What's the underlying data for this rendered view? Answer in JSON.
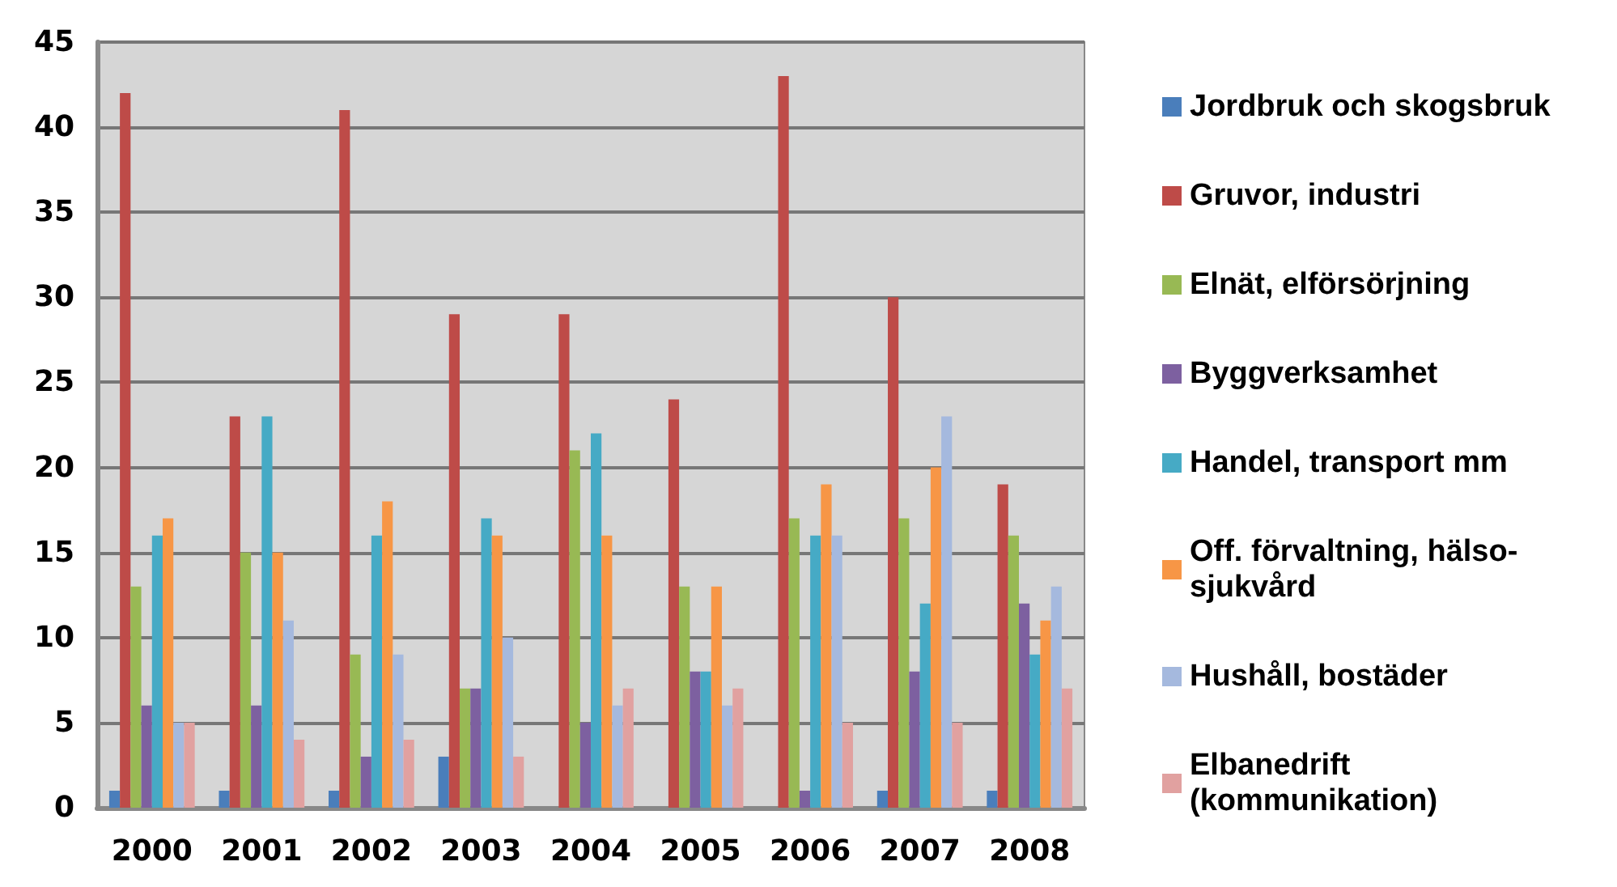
{
  "chart_data": {
    "type": "bar",
    "categories": [
      "2000",
      "2001",
      "2002",
      "2003",
      "2004",
      "2005",
      "2006",
      "2007",
      "2008"
    ],
    "ylim": [
      0,
      45
    ],
    "yticks": [
      0,
      5,
      10,
      15,
      20,
      25,
      30,
      35,
      40,
      45
    ],
    "grid": "y",
    "legend": "right",
    "series": [
      {
        "name": "Jordbruk och skogsbruk",
        "color": "#4a7ebb",
        "values": [
          1,
          1,
          1,
          3,
          0,
          0,
          0,
          1,
          1
        ]
      },
      {
        "name": "Gruvor, industri",
        "color": "#be4b48",
        "values": [
          42,
          23,
          41,
          29,
          29,
          24,
          43,
          30,
          19
        ]
      },
      {
        "name": "Elnät, elförsörjning",
        "color": "#98b954",
        "values": [
          13,
          15,
          9,
          7,
          21,
          13,
          17,
          17,
          16
        ]
      },
      {
        "name": "Byggverksamhet",
        "color": "#7d60a0",
        "values": [
          6,
          6,
          3,
          7,
          5,
          8,
          1,
          8,
          12
        ]
      },
      {
        "name": "Handel, transport mm",
        "color": "#46aac5",
        "values": [
          16,
          23,
          16,
          17,
          22,
          8,
          16,
          12,
          9
        ]
      },
      {
        "name": "Off. förvaltning, hälso-\nsjukvård",
        "color": "#f79646",
        "values": [
          17,
          15,
          18,
          16,
          16,
          13,
          19,
          20,
          11
        ]
      },
      {
        "name": "Hushåll, bostäder",
        "color": "#a5b9de",
        "values": [
          5,
          11,
          9,
          10,
          6,
          6,
          16,
          23,
          13
        ]
      },
      {
        "name": "Elbanedrift\n(kommunikation)",
        "color": "#e1a1a0",
        "values": [
          5,
          4,
          4,
          3,
          7,
          7,
          5,
          5,
          7
        ]
      }
    ]
  }
}
